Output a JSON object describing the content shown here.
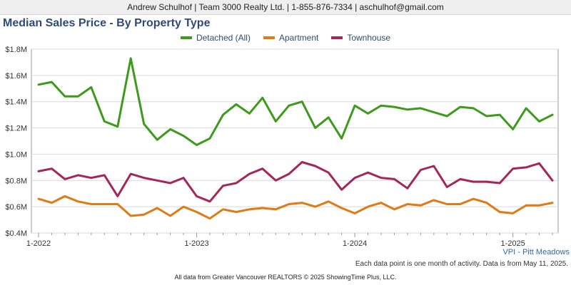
{
  "header": {
    "text": "Andrew Schulhof | Team 3000 Realty Ltd. | 1-855-876-7334 | aschulhof@gmail.com"
  },
  "region": "VPI - Pitt Meadows",
  "note": "Each data point is one month of activity. Data is from May 11, 2025.",
  "footer": "All data from Greater Vancouver REALTORS © 2025 ShowingTime Plus, LLC.",
  "chart_data": {
    "type": "line",
    "title": "Median Sales Price - By Property Type",
    "x_start": "2022-01",
    "x_tick_labels": [
      "1-2022",
      "1-2023",
      "1-2024",
      "1-2025"
    ],
    "y_tick_labels": [
      "$0.4M",
      "$0.6M",
      "$0.8M",
      "$1.0M",
      "$1.2M",
      "$1.4M",
      "$1.6M",
      "$1.8M"
    ],
    "y_ticks": [
      0.4,
      0.6,
      0.8,
      1.0,
      1.2,
      1.4,
      1.6,
      1.8
    ],
    "ylim": [
      0.4,
      1.8
    ],
    "grid": true,
    "legend_position": "top",
    "series": [
      {
        "name": "Detached (All)",
        "color": "#3d9a1b",
        "values": [
          1.53,
          1.55,
          1.44,
          1.44,
          1.51,
          1.25,
          1.21,
          1.73,
          1.23,
          1.11,
          1.19,
          1.14,
          1.07,
          1.12,
          1.3,
          1.38,
          1.31,
          1.43,
          1.25,
          1.37,
          1.4,
          1.2,
          1.28,
          1.12,
          1.37,
          1.31,
          1.37,
          1.36,
          1.34,
          1.35,
          1.32,
          1.29,
          1.36,
          1.35,
          1.29,
          1.3,
          1.19,
          1.35,
          1.25,
          1.3
        ]
      },
      {
        "name": "Apartment",
        "color": "#e07a14",
        "values": [
          0.66,
          0.63,
          0.68,
          0.64,
          0.62,
          0.62,
          0.62,
          0.53,
          0.54,
          0.59,
          0.53,
          0.6,
          0.56,
          0.51,
          0.58,
          0.56,
          0.58,
          0.59,
          0.58,
          0.62,
          0.63,
          0.6,
          0.64,
          0.59,
          0.55,
          0.6,
          0.63,
          0.58,
          0.62,
          0.61,
          0.65,
          0.62,
          0.62,
          0.66,
          0.63,
          0.56,
          0.55,
          0.61,
          0.61,
          0.63
        ]
      },
      {
        "name": "Townhouse",
        "color": "#a4265a",
        "values": [
          0.87,
          0.89,
          0.81,
          0.84,
          0.82,
          0.84,
          0.68,
          0.85,
          0.82,
          0.8,
          0.78,
          0.82,
          0.68,
          0.64,
          0.76,
          0.78,
          0.85,
          0.89,
          0.8,
          0.85,
          0.94,
          0.91,
          0.86,
          0.73,
          0.82,
          0.86,
          0.82,
          0.81,
          0.74,
          0.88,
          0.91,
          0.75,
          0.81,
          0.79,
          0.79,
          0.78,
          0.89,
          0.9,
          0.93,
          0.8
        ]
      }
    ]
  }
}
